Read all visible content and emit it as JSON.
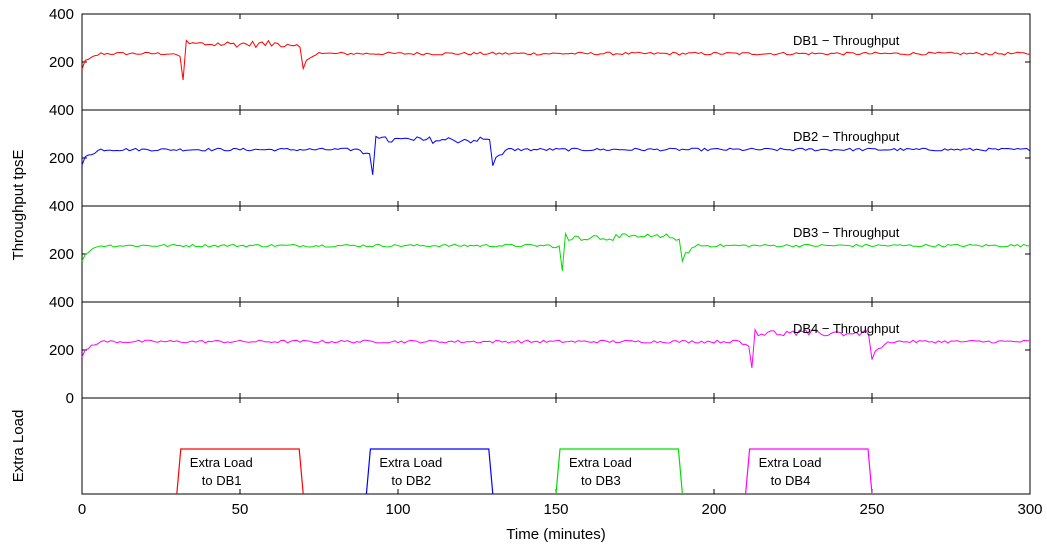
{
  "chart_data": {
    "type": "line",
    "xlabel": "Time (minutes)",
    "ylabel": "Throughput tpsE",
    "x_ticks": [
      "0",
      "50",
      "100",
      "150",
      "200",
      "250",
      "300"
    ],
    "xlim": [
      0,
      300
    ],
    "grid": false,
    "legend": "none",
    "throughput_panels": [
      {
        "label": "DB1 − Throughput",
        "color": "#ff0000",
        "ylim": [
          0,
          400
        ],
        "y_ticks": [
          "400",
          "200"
        ],
        "baseline": 235,
        "disturbance_start_min": 32,
        "disturbance_end_min": 70,
        "dip_min_value": 125,
        "elevated_value": 280,
        "post_drop_value": 172
      },
      {
        "label": "DB2 − Throughput",
        "color": "#0000ff",
        "ylim": [
          0,
          400
        ],
        "y_ticks": [
          "400",
          "200"
        ],
        "baseline": 235,
        "disturbance_start_min": 92,
        "disturbance_end_min": 130,
        "dip_min_value": 130,
        "elevated_value": 280,
        "post_drop_value": 168
      },
      {
        "label": "DB3 − Throughput",
        "color": "#00dd00",
        "ylim": [
          0,
          400
        ],
        "y_ticks": [
          "400",
          "200"
        ],
        "baseline": 235,
        "disturbance_start_min": 152,
        "disturbance_end_min": 190,
        "dip_min_value": 130,
        "elevated_value": 275,
        "post_drop_value": 170
      },
      {
        "label": "DB4 − Throughput",
        "color": "#ff00ff",
        "ylim": [
          0,
          400
        ],
        "y_ticks": [
          "400",
          "200",
          "0"
        ],
        "baseline": 235,
        "disturbance_start_min": 212,
        "disturbance_end_min": 250,
        "dip_min_value": 125,
        "elevated_value": 275,
        "post_drop_value": 160
      }
    ],
    "extra_load_panel": {
      "ylabel": "Extra Load",
      "pulses": [
        {
          "label_line1": "Extra Load",
          "label_line2": "to DB1",
          "start_min": 30,
          "end_min": 70,
          "color": "#ff0000"
        },
        {
          "label_line1": "Extra Load",
          "label_line2": "to DB2",
          "start_min": 90,
          "end_min": 130,
          "color": "#0000ff"
        },
        {
          "label_line1": "Extra Load",
          "label_line2": "to DB3",
          "start_min": 150,
          "end_min": 190,
          "color": "#00dd00"
        },
        {
          "label_line1": "Extra Load",
          "label_line2": "to DB4",
          "start_min": 210,
          "end_min": 250,
          "color": "#ff00ff"
        }
      ]
    }
  }
}
